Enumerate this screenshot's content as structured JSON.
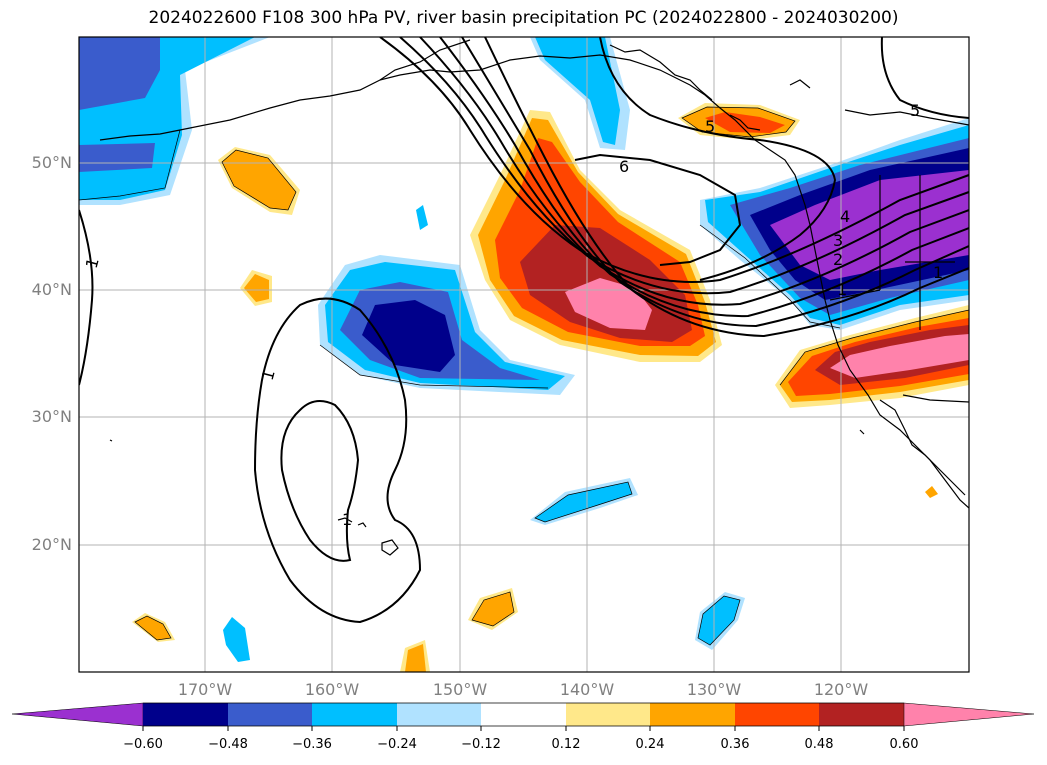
{
  "title": "2024022600 F108 300 hPa PV, river basin precipitation PC (2024022800 - 2024030200)",
  "lat_labels": [
    {
      "text": "50°N",
      "lat": 50
    },
    {
      "text": "40°N",
      "lat": 40
    },
    {
      "text": "30°N",
      "lat": 30
    },
    {
      "text": "20°N",
      "lat": 20
    }
  ],
  "lon_labels": [
    {
      "text": "170°W",
      "lon": -170
    },
    {
      "text": "160°W",
      "lon": -160
    },
    {
      "text": "150°W",
      "lon": -150
    },
    {
      "text": "140°W",
      "lon": -140
    },
    {
      "text": "130°W",
      "lon": -130
    },
    {
      "text": "120°W",
      "lon": -120
    }
  ],
  "colorbar": {
    "ticks": [
      "−0.60",
      "−0.48",
      "−0.36",
      "−0.24",
      "−0.12",
      "0.12",
      "0.24",
      "0.36",
      "0.48",
      "0.60"
    ],
    "colors": [
      "#9b30d0",
      "#00008b",
      "#3a5ccc",
      "#00bfff",
      "#b0e2ff",
      "#ffffff",
      "#ffe88a",
      "#ffa500",
      "#ff4500",
      "#b22222",
      "#ff82ab"
    ]
  },
  "contour_labels": [
    "6",
    "5",
    "5",
    "4",
    "3",
    "2",
    "1",
    "1",
    "1",
    "1",
    "1"
  ],
  "chart_data": {
    "type": "map",
    "region": {
      "lon": [
        -180,
        -110
      ],
      "lat": [
        10,
        60
      ]
    },
    "fields": [
      {
        "name": "300 hPa PV",
        "style": "black contours",
        "levels": [
          1,
          2,
          3,
          4,
          5,
          6
        ]
      },
      {
        "name": "river basin precipitation PC",
        "style": "filled",
        "levels": [
          -0.6,
          -0.48,
          -0.36,
          -0.24,
          -0.12,
          0.12,
          0.24,
          0.36,
          0.48,
          0.6
        ]
      }
    ],
    "grid": true,
    "colorbar": "horizontal-bottom"
  }
}
